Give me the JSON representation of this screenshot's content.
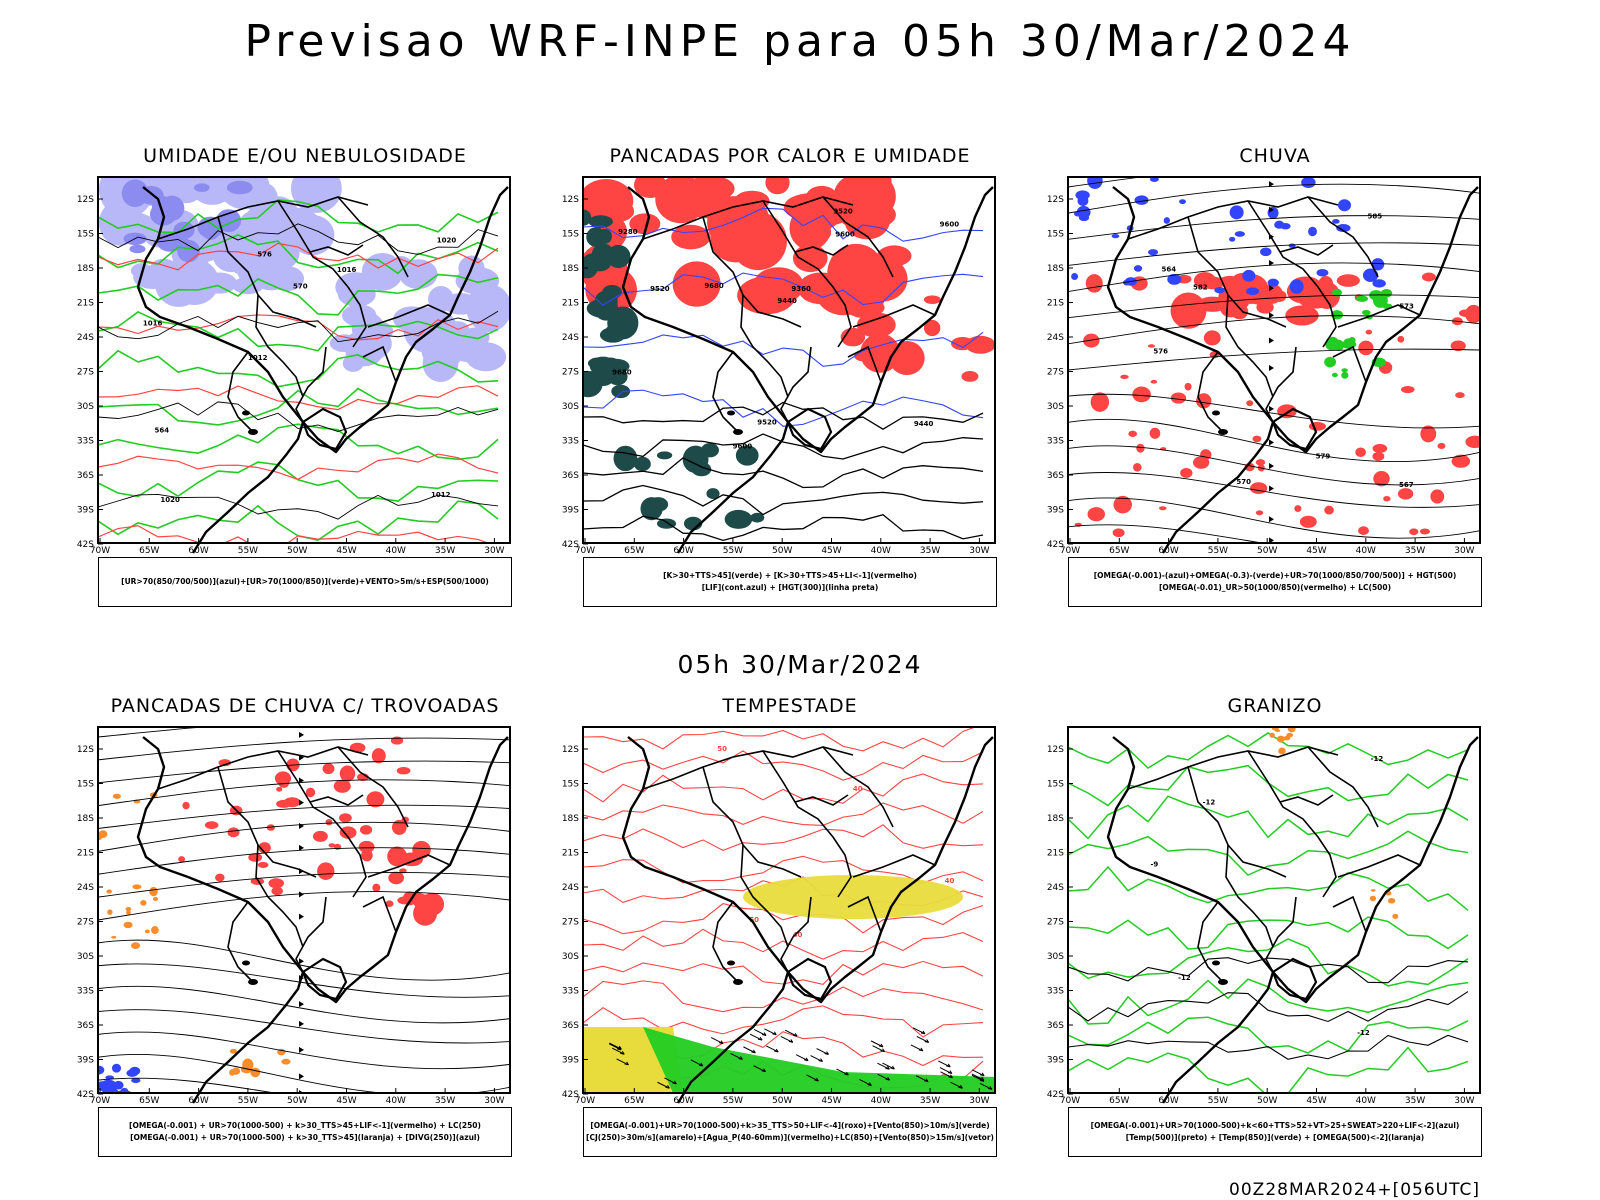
{
  "title": "Previsao WRF-INPE  para 05h 30/Mar/2024",
  "subtitle": "05h 30/Mar/2024",
  "footer": "00Z28MAR2024+[056UTC]",
  "axes": {
    "lat_labels": [
      "12S",
      "15S",
      "18S",
      "21S",
      "24S",
      "27S",
      "30S",
      "33S",
      "36S",
      "39S",
      "42S"
    ],
    "lon_labels": [
      "70W",
      "65W",
      "60W",
      "55W",
      "50W",
      "45W",
      "40W",
      "35W",
      "30W"
    ]
  },
  "colors": {
    "blue": "#3344ff",
    "lightblue": "#b8b8f8",
    "green": "#22cc22",
    "red": "#ff4444",
    "darkteal": "#1e4a4a",
    "yellow": "#e8dc3c",
    "orange": "#ff8c2a",
    "black": "#000000"
  },
  "panels": [
    {
      "id": "umidade",
      "title": "UMIDADE E/OU NEBULOSIDADE",
      "legend": [
        "[UR>70(850/700/500)](azul)+[UR>70(1000/850)](verde)+VENTO>5m/s+ESP(500/1000)"
      ],
      "contour_labels": [
        "1012",
        "1016",
        "1020",
        "1012",
        "1016",
        "1020",
        "576",
        "570",
        "564"
      ]
    },
    {
      "id": "pancadas",
      "title": "PANCADAS POR CALOR E UMIDADE",
      "legend": [
        "[K>30+TTS>45](verde) + [K>30+TTS>45+LI<-1](vermelho)",
        "[LIF](cont.azul) + [HGT(300)](linha preta)"
      ],
      "contour_labels": [
        "9680",
        "9680",
        "9600",
        "9600",
        "9520",
        "9600",
        "9520",
        "9440",
        "9360",
        "9280",
        "9440",
        "9520"
      ]
    },
    {
      "id": "chuva",
      "title": "CHUVA",
      "legend": [
        "[OMEGA(-0.001)-(azul)+OMEGA(-0.3)-(verde)+UR>70(1000/850/700/500)] + HGT(500)",
        "[OMEGA(-0.01)_UR>50(1000/850)(vermelho) + LC(500)"
      ],
      "contour_labels": [
        "579",
        "576",
        "573",
        "570",
        "567",
        "564",
        "582",
        "585"
      ]
    },
    {
      "id": "trovoadas",
      "title": "PANCADAS DE CHUVA C/ TROVOADAS",
      "legend": [
        "[OMEGA(-0.001) + UR>70(1000-500) + k>30_TTS>45+LIF<-1](vermelho) + LC(250)",
        "[OMEGA(-0.001) + UR>70(1000-500) + k>30_TTS>45](laranja) + [DIVG(250)](azul)"
      ],
      "contour_labels": []
    },
    {
      "id": "tempestade",
      "title": "TEMPESTADE",
      "legend": [
        "[OMEGA(-0.001)+UR>70(1000-500)+k>35_TTS>50+LIF<-4](roxo)+[Vento(850)>10m/s](verde)",
        "[CJ(250)>30m/s](amarelo)+[Agua_P(40-60mm)](vermelho)+LC(850)+[Vento(850)>15m/s](vetor)"
      ],
      "contour_labels": [
        "50",
        "40",
        "40",
        "50",
        "40"
      ]
    },
    {
      "id": "granizo",
      "title": "GRANIZO",
      "legend": [
        "[OMEGA(-0.001)+UR>70(1000-500)+k<60+TTS>52+VT>25+SWEAT>220+LIF<-2](azul)",
        "[Temp(500)](preto) + [Temp(850)](verde) + [OMEGA(500)<-2](laranja)"
      ],
      "contour_labels": [
        "-12",
        "-12",
        "-12",
        "-12",
        "-9"
      ]
    }
  ]
}
